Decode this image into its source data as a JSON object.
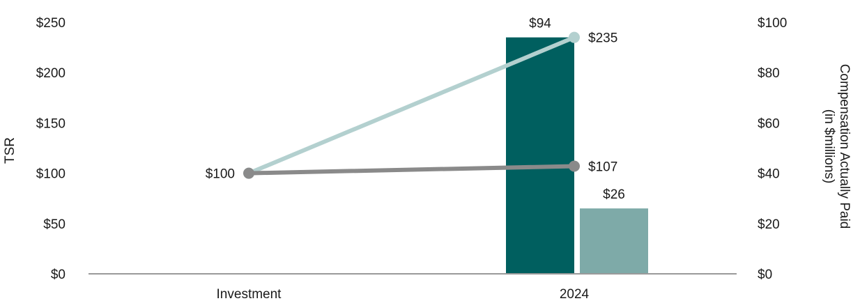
{
  "chart_data": {
    "type": "bar+line",
    "categories": [
      "Investment",
      "2024"
    ],
    "left_axis": {
      "label": "TSR",
      "range": [
        0,
        250
      ],
      "ticks": [
        "$0",
        "$50",
        "$100",
        "$150",
        "$200",
        "$250"
      ]
    },
    "right_axis": {
      "label_line1": "Compensation Actually Paid",
      "label_line2": "(in $millions)",
      "range": [
        0,
        100
      ],
      "ticks": [
        "$0",
        "$20",
        "$40",
        "$60",
        "$80",
        "$100"
      ]
    },
    "bars": [
      {
        "category": "2024",
        "value": 94,
        "label": "$94",
        "color": "#005f5f"
      },
      {
        "category": "2024",
        "value": 26,
        "label": "$26",
        "color": "#7eaaa8"
      }
    ],
    "lines": [
      {
        "values": [
          100,
          235
        ],
        "labels": [
          "$100",
          "$235"
        ],
        "color": "#b3d0cf"
      },
      {
        "values": [
          100,
          107
        ],
        "labels": [
          "",
          "$107"
        ],
        "color": "#8a8a8a"
      }
    ],
    "grid": false
  }
}
